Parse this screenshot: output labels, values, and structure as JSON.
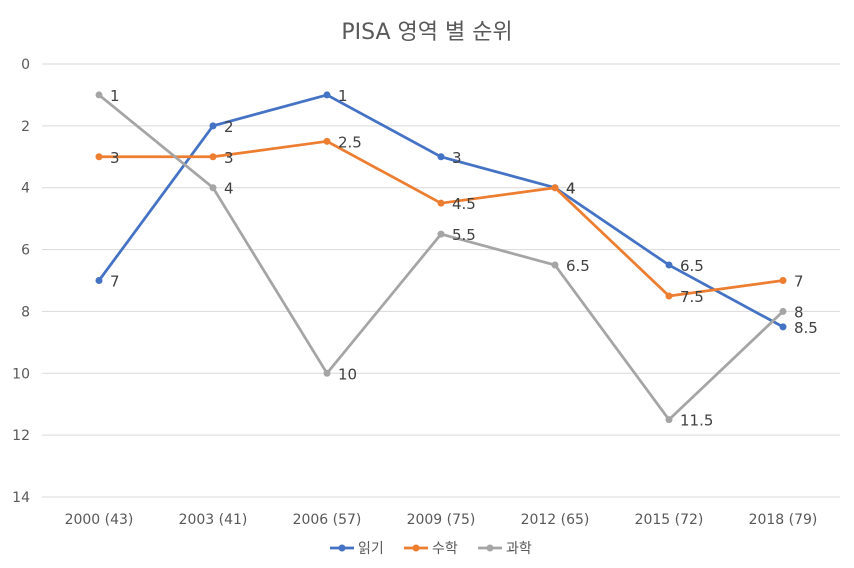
{
  "chart_data": {
    "type": "line",
    "title": "PISA 영역 별 순위",
    "categories": [
      "2000 (43)",
      "2003 (41)",
      "2006 (57)",
      "2009 (75)",
      "2012 (65)",
      "2015 (72)",
      "2018 (79)"
    ],
    "series": [
      {
        "name": "읽기",
        "color": "#4472C4",
        "values": [
          7,
          2,
          1,
          3,
          4,
          6.5,
          8.5
        ]
      },
      {
        "name": "수학",
        "color": "#ED7D31",
        "values": [
          3,
          3,
          2.5,
          4.5,
          4,
          7.5,
          7
        ]
      },
      {
        "name": "과학",
        "color": "#A5A5A5",
        "values": [
          1,
          4,
          10,
          5.5,
          6.5,
          11.5,
          8
        ]
      }
    ],
    "y_ticks": [
      "0",
      "2",
      "4",
      "6",
      "8",
      "10",
      "12",
      "14"
    ],
    "ylim": [
      0,
      14
    ],
    "y_reversed": true,
    "grid": true,
    "legend_position": "bottom"
  }
}
